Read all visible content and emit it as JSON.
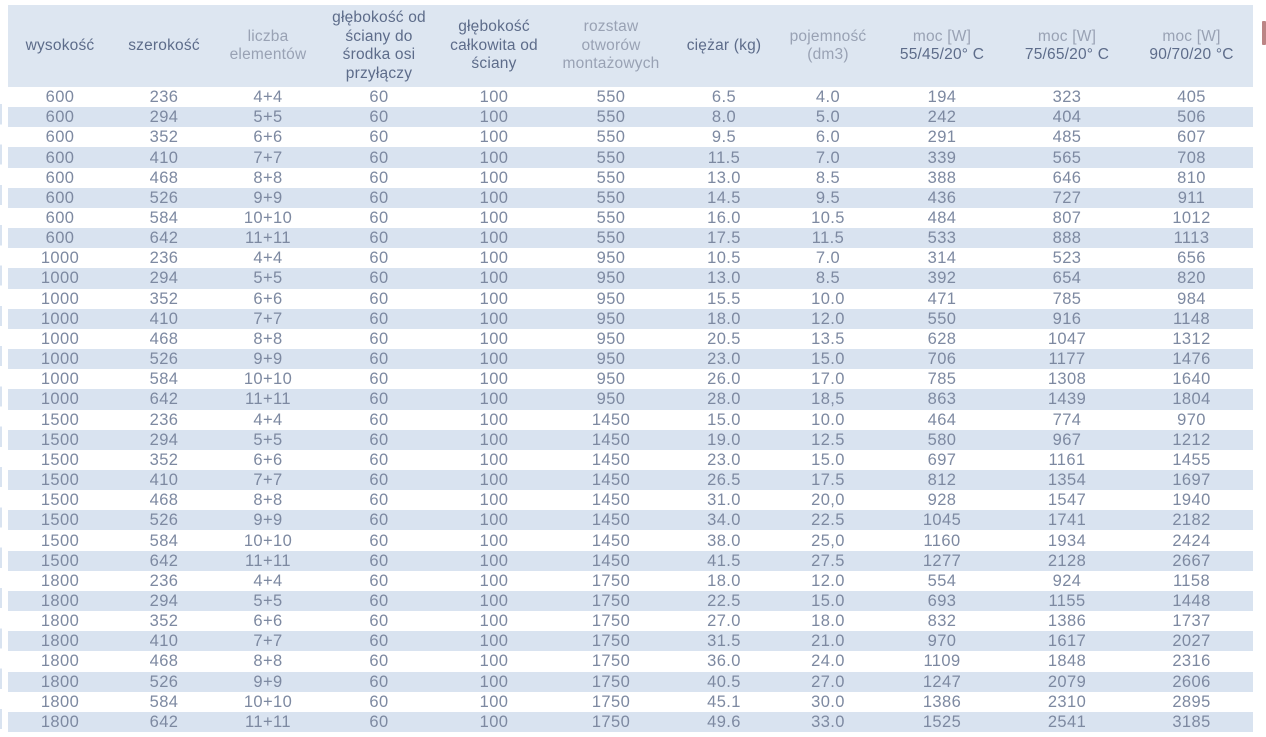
{
  "colors": {
    "header_bg": "#dde6f1",
    "stripe_bg": "#d9e3f0",
    "data_text": "#7d89a1",
    "header_text_dark": "#5d6c8a",
    "header_text_muted": "#99a2b4",
    "right_edge_sliver": "#bb8585"
  },
  "table": {
    "columns": [
      {
        "id": "wysokosc",
        "label": "wysokość",
        "sub": "",
        "tone": "dark"
      },
      {
        "id": "szerokosc",
        "label": "szerokość",
        "sub": "",
        "tone": "dark"
      },
      {
        "id": "liczba-elementow",
        "label": "liczba elementów",
        "sub": "",
        "tone": "muted"
      },
      {
        "id": "glebokosc-od-sciany-do-srodka-osi-przylaczy",
        "label": "głębokość od ściany do środka osi przyłączy",
        "sub": "",
        "tone": "dark"
      },
      {
        "id": "glebokosc-calkowita-od-sciany",
        "label": "głębokość całkowita od ściany",
        "sub": "",
        "tone": "dark"
      },
      {
        "id": "rozstaw-otworow-montazowych",
        "label": "rozstaw otworów montażowych",
        "sub": "",
        "tone": "muted"
      },
      {
        "id": "ciezar-kg",
        "label": "ciężar (kg)",
        "sub": "",
        "tone": "dark"
      },
      {
        "id": "pojemnosc-dm3",
        "label": "pojemność (dm3)",
        "sub": "",
        "tone": "muted"
      },
      {
        "id": "moc-w-55-45-20",
        "label": "moc [W]",
        "sub": "55/45/20° C",
        "tone": "muted"
      },
      {
        "id": "moc-w-75-65-20",
        "label": "moc [W]",
        "sub": "75/65/20° C",
        "tone": "muted"
      },
      {
        "id": "moc-w-90-70-20",
        "label": "moc [W]",
        "sub": "90/70/20 °C",
        "tone": "muted"
      }
    ],
    "rows": [
      [
        "600",
        "236",
        "4+4",
        "60",
        "100",
        "550",
        "6.5",
        "4.0",
        "194",
        "323",
        "405"
      ],
      [
        "600",
        "294",
        "5+5",
        "60",
        "100",
        "550",
        "8.0",
        "5.0",
        "242",
        "404",
        "506"
      ],
      [
        "600",
        "352",
        "6+6",
        "60",
        "100",
        "550",
        "9.5",
        "6.0",
        "291",
        "485",
        "607"
      ],
      [
        "600",
        "410",
        "7+7",
        "60",
        "100",
        "550",
        "11.5",
        "7.0",
        "339",
        "565",
        "708"
      ],
      [
        "600",
        "468",
        "8+8",
        "60",
        "100",
        "550",
        "13.0",
        "8.5",
        "388",
        "646",
        "810"
      ],
      [
        "600",
        "526",
        "9+9",
        "60",
        "100",
        "550",
        "14.5",
        "9.5",
        "436",
        "727",
        "911"
      ],
      [
        "600",
        "584",
        "10+10",
        "60",
        "100",
        "550",
        "16.0",
        "10.5",
        "484",
        "807",
        "1012"
      ],
      [
        "600",
        "642",
        "11+11",
        "60",
        "100",
        "550",
        "17.5",
        "11.5",
        "533",
        "888",
        "1113"
      ],
      [
        "1000",
        "236",
        "4+4",
        "60",
        "100",
        "950",
        "10.5",
        "7.0",
        "314",
        "523",
        "656"
      ],
      [
        "1000",
        "294",
        "5+5",
        "60",
        "100",
        "950",
        "13.0",
        "8.5",
        "392",
        "654",
        "820"
      ],
      [
        "1000",
        "352",
        "6+6",
        "60",
        "100",
        "950",
        "15.5",
        "10.0",
        "471",
        "785",
        "984"
      ],
      [
        "1000",
        "410",
        "7+7",
        "60",
        "100",
        "950",
        "18.0",
        "12.0",
        "550",
        "916",
        "1148"
      ],
      [
        "1000",
        "468",
        "8+8",
        "60",
        "100",
        "950",
        "20.5",
        "13.5",
        "628",
        "1047",
        "1312"
      ],
      [
        "1000",
        "526",
        "9+9",
        "60",
        "100",
        "950",
        "23.0",
        "15.0",
        "706",
        "1177",
        "1476"
      ],
      [
        "1000",
        "584",
        "10+10",
        "60",
        "100",
        "950",
        "26.0",
        "17.0",
        "785",
        "1308",
        "1640"
      ],
      [
        "1000",
        "642",
        "11+11",
        "60",
        "100",
        "950",
        "28.0",
        "18,5",
        "863",
        "1439",
        "1804"
      ],
      [
        "1500",
        "236",
        "4+4",
        "60",
        "100",
        "1450",
        "15.0",
        "10.0",
        "464",
        "774",
        "970"
      ],
      [
        "1500",
        "294",
        "5+5",
        "60",
        "100",
        "1450",
        "19.0",
        "12.5",
        "580",
        "967",
        "1212"
      ],
      [
        "1500",
        "352",
        "6+6",
        "60",
        "100",
        "1450",
        "23.0",
        "15.0",
        "697",
        "1161",
        "1455"
      ],
      [
        "1500",
        "410",
        "7+7",
        "60",
        "100",
        "1450",
        "26.5",
        "17.5",
        "812",
        "1354",
        "1697"
      ],
      [
        "1500",
        "468",
        "8+8",
        "60",
        "100",
        "1450",
        "31.0",
        "20,0",
        "928",
        "1547",
        "1940"
      ],
      [
        "1500",
        "526",
        "9+9",
        "60",
        "100",
        "1450",
        "34.0",
        "22.5",
        "1045",
        "1741",
        "2182"
      ],
      [
        "1500",
        "584",
        "10+10",
        "60",
        "100",
        "1450",
        "38.0",
        "25,0",
        "1160",
        "1934",
        "2424"
      ],
      [
        "1500",
        "642",
        "11+11",
        "60",
        "100",
        "1450",
        "41.5",
        "27.5",
        "1277",
        "2128",
        "2667"
      ],
      [
        "1800",
        "236",
        "4+4",
        "60",
        "100",
        "1750",
        "18.0",
        "12.0",
        "554",
        "924",
        "1158"
      ],
      [
        "1800",
        "294",
        "5+5",
        "60",
        "100",
        "1750",
        "22.5",
        "15.0",
        "693",
        "1155",
        "1448"
      ],
      [
        "1800",
        "352",
        "6+6",
        "60",
        "100",
        "1750",
        "27.0",
        "18.0",
        "832",
        "1386",
        "1737"
      ],
      [
        "1800",
        "410",
        "7+7",
        "60",
        "100",
        "1750",
        "31.5",
        "21.0",
        "970",
        "1617",
        "2027"
      ],
      [
        "1800",
        "468",
        "8+8",
        "60",
        "100",
        "1750",
        "36.0",
        "24.0",
        "1109",
        "1848",
        "2316"
      ],
      [
        "1800",
        "526",
        "9+9",
        "60",
        "100",
        "1750",
        "40.5",
        "27.0",
        "1247",
        "2079",
        "2606"
      ],
      [
        "1800",
        "584",
        "10+10",
        "60",
        "100",
        "1750",
        "45.1",
        "30.0",
        "1386",
        "2310",
        "2895"
      ],
      [
        "1800",
        "642",
        "11+11",
        "60",
        "100",
        "1750",
        "49.6",
        "33.0",
        "1525",
        "2541",
        "3185"
      ]
    ]
  }
}
